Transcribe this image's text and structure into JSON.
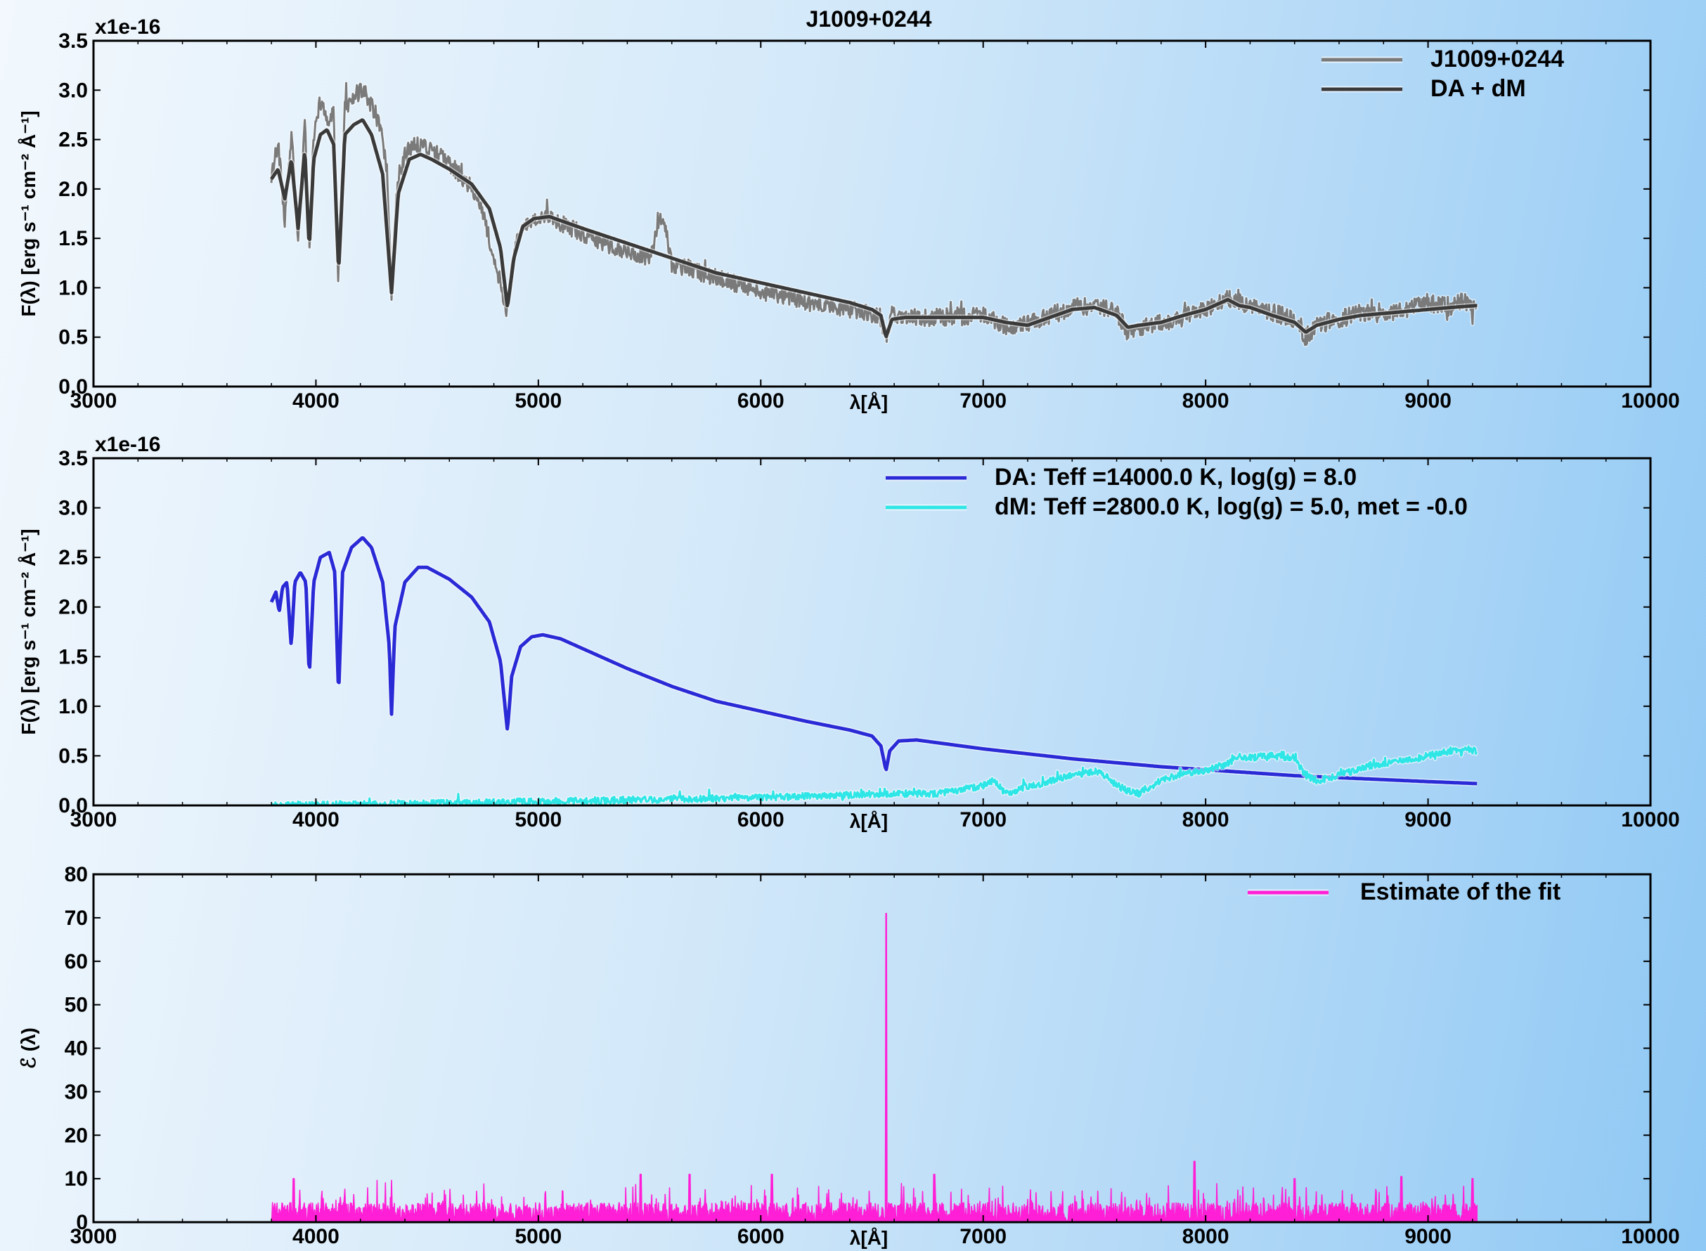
{
  "chart_data": [
    {
      "type": "line",
      "title": "J1009+0244",
      "xlabel": "λ[Å]",
      "ylabel": "F(λ) [erg s⁻¹ cm⁻² Å⁻¹]",
      "y_offset_text": "x1e-16",
      "xlim": [
        3000,
        10000
      ],
      "ylim": [
        0.0,
        3.5
      ],
      "xticks": [
        "3000",
        "4000",
        "5000",
        "6000",
        "7000",
        "8000",
        "9000",
        "10000"
      ],
      "yticks": [
        "0.0",
        "0.5",
        "1.0",
        "1.5",
        "2.0",
        "2.5",
        "3.0",
        "3.5"
      ],
      "grid": false,
      "legend_position": "top-right",
      "series": [
        {
          "name": "J1009+0244",
          "color": "#7a7a7a",
          "x": [
            3800,
            3830,
            3860,
            3890,
            3920,
            3950,
            3970,
            3990,
            4020,
            4050,
            4080,
            4100,
            4130,
            4170,
            4200,
            4230,
            4260,
            4290,
            4320,
            4340,
            4360,
            4400,
            4450,
            4500,
            4550,
            4600,
            4650,
            4700,
            4750,
            4800,
            4830,
            4861,
            4880,
            4920,
            4970,
            5020,
            5100,
            5200,
            5300,
            5400,
            5500,
            5560,
            5600,
            5700,
            5800,
            5900,
            6000,
            6100,
            6200,
            6300,
            6400,
            6500,
            6540,
            6563,
            6590,
            6650,
            6750,
            6850,
            7000,
            7100,
            7150,
            7200,
            7300,
            7400,
            7500,
            7600,
            7650,
            7700,
            7800,
            7900,
            8000,
            8100,
            8150,
            8200,
            8300,
            8400,
            8450,
            8500,
            8600,
            8700,
            8800,
            8900,
            9000,
            9100,
            9150,
            9220
          ],
          "y": [
            2.15,
            2.45,
            1.7,
            2.55,
            1.5,
            2.75,
            1.3,
            2.55,
            2.9,
            2.7,
            2.75,
            1.1,
            2.85,
            2.9,
            3.0,
            2.95,
            2.8,
            2.6,
            2.2,
            0.95,
            1.9,
            2.35,
            2.45,
            2.4,
            2.35,
            2.25,
            2.15,
            2.0,
            1.75,
            1.3,
            1.05,
            0.75,
            1.25,
            1.6,
            1.7,
            1.75,
            1.65,
            1.55,
            1.45,
            1.38,
            1.3,
            1.75,
            1.25,
            1.18,
            1.1,
            1.03,
            0.97,
            0.92,
            0.86,
            0.82,
            0.78,
            0.74,
            0.68,
            0.5,
            0.72,
            0.68,
            0.7,
            0.7,
            0.72,
            0.62,
            0.6,
            0.65,
            0.72,
            0.8,
            0.82,
            0.75,
            0.55,
            0.58,
            0.65,
            0.7,
            0.78,
            0.9,
            0.85,
            0.82,
            0.75,
            0.68,
            0.5,
            0.62,
            0.68,
            0.75,
            0.72,
            0.78,
            0.85,
            0.8,
            0.88,
            0.75
          ]
        },
        {
          "name": "DA + dM",
          "color": "#3a3a3a",
          "x": [
            3800,
            3830,
            3860,
            3890,
            3920,
            3950,
            3970,
            3990,
            4020,
            4050,
            4080,
            4102,
            4130,
            4170,
            4210,
            4250,
            4300,
            4340,
            4370,
            4420,
            4470,
            4520,
            4600,
            4700,
            4780,
            4830,
            4861,
            4890,
            4930,
            4980,
            5050,
            5200,
            5400,
            5600,
            5800,
            6000,
            6200,
            6400,
            6500,
            6540,
            6563,
            6590,
            6650,
            6800,
            7000,
            7100,
            7200,
            7300,
            7400,
            7500,
            7600,
            7650,
            7700,
            7800,
            7900,
            8000,
            8100,
            8150,
            8200,
            8300,
            8400,
            8450,
            8500,
            8600,
            8700,
            8800,
            8900,
            9000,
            9100,
            9220
          ],
          "y": [
            2.1,
            2.2,
            1.9,
            2.3,
            1.6,
            2.4,
            1.4,
            2.3,
            2.55,
            2.6,
            2.45,
            1.15,
            2.55,
            2.65,
            2.7,
            2.55,
            2.15,
            0.95,
            1.95,
            2.3,
            2.35,
            2.3,
            2.2,
            2.05,
            1.8,
            1.4,
            0.8,
            1.3,
            1.62,
            1.7,
            1.72,
            1.6,
            1.45,
            1.3,
            1.15,
            1.05,
            0.95,
            0.85,
            0.78,
            0.72,
            0.5,
            0.68,
            0.7,
            0.7,
            0.7,
            0.65,
            0.62,
            0.7,
            0.78,
            0.8,
            0.72,
            0.6,
            0.62,
            0.65,
            0.72,
            0.78,
            0.88,
            0.82,
            0.8,
            0.72,
            0.65,
            0.55,
            0.62,
            0.68,
            0.72,
            0.74,
            0.76,
            0.78,
            0.8,
            0.82
          ]
        }
      ]
    },
    {
      "type": "line",
      "title": "",
      "xlabel": "λ[Å]",
      "ylabel": "F(λ) [erg s⁻¹ cm⁻² Å⁻¹]",
      "y_offset_text": "x1e-16",
      "xlim": [
        3000,
        10000
      ],
      "ylim": [
        0.0,
        3.5
      ],
      "xticks": [
        "3000",
        "4000",
        "5000",
        "6000",
        "7000",
        "8000",
        "9000",
        "10000"
      ],
      "yticks": [
        "0.0",
        "0.5",
        "1.0",
        "1.5",
        "2.0",
        "2.5",
        "3.0",
        "3.5"
      ],
      "grid": false,
      "legend_position": "top-right",
      "series": [
        {
          "name": "DA: Teff =14000.0 K, log(g) = 8.0",
          "color": "#2a2ad6",
          "x": [
            3800,
            3820,
            3835,
            3850,
            3870,
            3889,
            3905,
            3930,
            3955,
            3970,
            3990,
            4020,
            4060,
            4085,
            4102,
            4120,
            4160,
            4210,
            4250,
            4300,
            4330,
            4340,
            4355,
            4400,
            4460,
            4500,
            4600,
            4700,
            4780,
            4830,
            4861,
            4880,
            4920,
            4970,
            5020,
            5100,
            5200,
            5400,
            5600,
            5800,
            6000,
            6200,
            6400,
            6500,
            6540,
            6563,
            6580,
            6620,
            6700,
            6800,
            7000,
            7200,
            7400,
            7600,
            7800,
            8000,
            8200,
            8400,
            8600,
            8800,
            9000,
            9220
          ],
          "y": [
            2.05,
            2.15,
            1.95,
            2.2,
            2.25,
            1.6,
            2.25,
            2.35,
            2.25,
            1.3,
            2.25,
            2.5,
            2.55,
            2.35,
            1.1,
            2.35,
            2.6,
            2.7,
            2.6,
            2.25,
            1.6,
            0.92,
            1.8,
            2.25,
            2.4,
            2.4,
            2.28,
            2.1,
            1.85,
            1.45,
            0.75,
            1.3,
            1.6,
            1.7,
            1.72,
            1.68,
            1.58,
            1.38,
            1.2,
            1.05,
            0.95,
            0.85,
            0.76,
            0.7,
            0.6,
            0.35,
            0.55,
            0.65,
            0.66,
            0.63,
            0.57,
            0.52,
            0.47,
            0.43,
            0.39,
            0.36,
            0.33,
            0.3,
            0.28,
            0.26,
            0.24,
            0.22
          ]
        },
        {
          "name": "dM: Teff =2800.0 K, log(g) = 5.0, met = -0.0",
          "color": "#2ee6e6",
          "x": [
            3800,
            4000,
            4500,
            5000,
            5300,
            5500,
            6000,
            6300,
            6500,
            6600,
            6800,
            7000,
            7050,
            7100,
            7300,
            7500,
            7550,
            7600,
            7650,
            7700,
            7800,
            7900,
            8000,
            8100,
            8150,
            8200,
            8300,
            8400,
            8450,
            8500,
            8600,
            8700,
            8800,
            8900,
            9000,
            9100,
            9220
          ],
          "y": [
            0.0,
            0.01,
            0.02,
            0.04,
            0.05,
            0.06,
            0.08,
            0.1,
            0.11,
            0.12,
            0.12,
            0.2,
            0.25,
            0.12,
            0.25,
            0.35,
            0.3,
            0.2,
            0.15,
            0.12,
            0.25,
            0.32,
            0.35,
            0.42,
            0.5,
            0.48,
            0.5,
            0.48,
            0.3,
            0.25,
            0.3,
            0.38,
            0.42,
            0.45,
            0.5,
            0.55,
            0.55
          ]
        }
      ]
    },
    {
      "type": "line",
      "title": "",
      "xlabel": "λ[Å]",
      "ylabel": "ℰ (λ)",
      "y_offset_text": "",
      "xlim": [
        3000,
        10000
      ],
      "ylim": [
        0,
        80
      ],
      "xticks": [
        "3000",
        "4000",
        "5000",
        "6000",
        "7000",
        "8000",
        "9000",
        "10000"
      ],
      "yticks": [
        "0",
        "10",
        "20",
        "30",
        "40",
        "50",
        "60",
        "70",
        "80"
      ],
      "grid": false,
      "legend_position": "top-right",
      "series": [
        {
          "name": "Estimate of the fit",
          "color": "#ff1fd6",
          "x_range": [
            3800,
            9220
          ],
          "typical_max": 10,
          "spikes": [
            {
              "x": 6563,
              "y": 71
            },
            {
              "x": 7950,
              "y": 14
            },
            {
              "x": 5680,
              "y": 11
            },
            {
              "x": 6050,
              "y": 11
            },
            {
              "x": 5460,
              "y": 11
            },
            {
              "x": 6780,
              "y": 11
            },
            {
              "x": 8880,
              "y": 10.5
            },
            {
              "x": 3900,
              "y": 10
            },
            {
              "x": 8400,
              "y": 10
            },
            {
              "x": 9200,
              "y": 10
            }
          ]
        }
      ]
    }
  ]
}
